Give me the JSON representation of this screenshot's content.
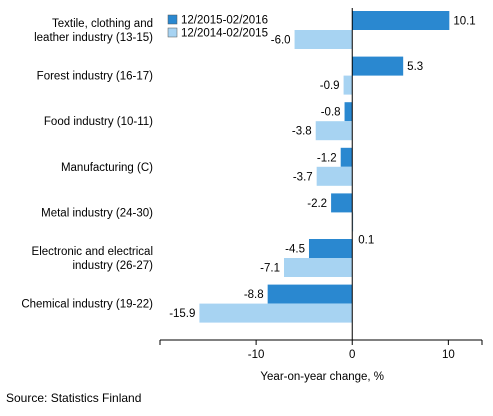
{
  "source": "Source: Statistics Finland",
  "chart_data": {
    "type": "bar",
    "orientation": "horizontal",
    "categories": [
      [
        "Textile, clothing and",
        "leather industry (13-15)"
      ],
      [
        "Forest industry (16-17)"
      ],
      [
        "Food industry (10-11)"
      ],
      [
        "Manufacturing (C)"
      ],
      [
        "Metal industry (24-30)"
      ],
      [
        "Electronic and electrical",
        "industry (26-27)"
      ],
      [
        "Chemical industry (19-22)"
      ]
    ],
    "series": [
      {
        "name": "12/2015-02/2016",
        "color": "#2a88d0",
        "values": [
          10.1,
          5.3,
          -0.8,
          -1.2,
          -2.2,
          -4.5,
          -8.8
        ]
      },
      {
        "name": "12/2014-02/2015",
        "color": "#a7d3f2",
        "values": [
          -6.0,
          -0.9,
          -3.8,
          -3.7,
          0.1,
          -7.1,
          -15.9
        ]
      }
    ],
    "value_labels": [
      [
        "10.1",
        "5.3",
        "-0.8",
        "-1.2",
        "-2.2",
        "-4.5",
        "-8.8"
      ],
      [
        "-6.0",
        "-0.9",
        "-3.8",
        "-3.7",
        "0.1",
        "-7.1",
        "-15.9"
      ]
    ],
    "xlim": [
      -20,
      13.5
    ],
    "xticks": [
      -10,
      0,
      10
    ],
    "xlabel": "Year-on-year change, %",
    "legend_position": "top-left"
  }
}
